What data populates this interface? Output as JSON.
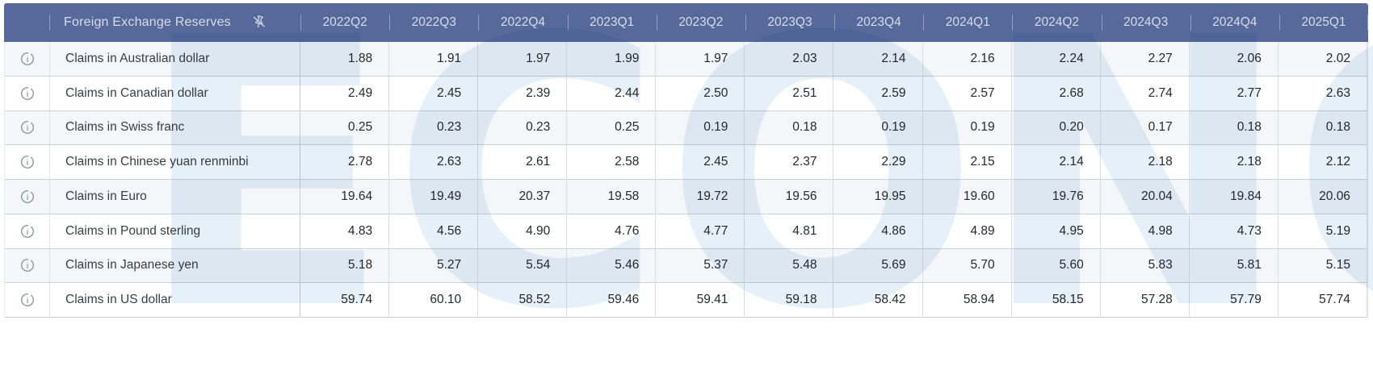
{
  "header": {
    "title": "Foreign Exchange Reserves",
    "columns": [
      "2022Q2",
      "2022Q3",
      "2022Q4",
      "2023Q1",
      "2023Q2",
      "2023Q3",
      "2023Q4",
      "2024Q1",
      "2024Q2",
      "2024Q3",
      "2024Q4",
      "2025Q1"
    ]
  },
  "rows": [
    {
      "label": "Claims in Australian dollar",
      "values": [
        "1.88",
        "1.91",
        "1.97",
        "1.99",
        "1.97",
        "2.03",
        "2.14",
        "2.16",
        "2.24",
        "2.27",
        "2.06",
        "2.02"
      ]
    },
    {
      "label": "Claims in Canadian dollar",
      "values": [
        "2.49",
        "2.45",
        "2.39",
        "2.44",
        "2.50",
        "2.51",
        "2.59",
        "2.57",
        "2.68",
        "2.74",
        "2.77",
        "2.63"
      ]
    },
    {
      "label": "Claims in Swiss franc",
      "values": [
        "0.25",
        "0.23",
        "0.23",
        "0.25",
        "0.19",
        "0.18",
        "0.19",
        "0.19",
        "0.20",
        "0.17",
        "0.18",
        "0.18"
      ]
    },
    {
      "label": "Claims in Chinese yuan renminbi",
      "values": [
        "2.78",
        "2.63",
        "2.61",
        "2.58",
        "2.45",
        "2.37",
        "2.29",
        "2.15",
        "2.14",
        "2.18",
        "2.18",
        "2.12"
      ]
    },
    {
      "label": "Claims in Euro",
      "values": [
        "19.64",
        "19.49",
        "20.37",
        "19.58",
        "19.72",
        "19.56",
        "19.95",
        "19.60",
        "19.76",
        "20.04",
        "19.84",
        "20.06"
      ]
    },
    {
      "label": "Claims in Pound sterling",
      "values": [
        "4.83",
        "4.56",
        "4.90",
        "4.76",
        "4.77",
        "4.81",
        "4.86",
        "4.89",
        "4.95",
        "4.98",
        "4.73",
        "5.19"
      ]
    },
    {
      "label": "Claims in Japanese yen",
      "values": [
        "5.18",
        "5.27",
        "5.54",
        "5.46",
        "5.37",
        "5.48",
        "5.69",
        "5.70",
        "5.60",
        "5.83",
        "5.81",
        "5.15"
      ]
    },
    {
      "label": "Claims in US dollar",
      "values": [
        "59.74",
        "60.10",
        "58.52",
        "59.46",
        "59.41",
        "59.18",
        "58.42",
        "58.94",
        "58.15",
        "57.28",
        "57.79",
        "57.74"
      ]
    }
  ],
  "icons": {
    "info_glyph": "i",
    "pin": "unpin-icon"
  },
  "watermark_text": "ECONOMICS",
  "colors": {
    "header_bg": "#56699a",
    "header_text": "#d6ddea",
    "row_alt_bg": "#f4f6f9",
    "row_bg": "#ffffff",
    "grid_line": "#dbdee3",
    "value_text": "#26292d",
    "label_text": "#3a3e44",
    "icon_gray": "#8f96a1",
    "watermark": "#d2e4f2"
  },
  "chart_data": {
    "type": "table",
    "title": "Foreign Exchange Reserves",
    "categories": [
      "2022Q2",
      "2022Q3",
      "2022Q4",
      "2023Q1",
      "2023Q2",
      "2023Q3",
      "2023Q4",
      "2024Q1",
      "2024Q2",
      "2024Q3",
      "2024Q4",
      "2025Q1"
    ],
    "series": [
      {
        "name": "Claims in Australian dollar",
        "values": [
          1.88,
          1.91,
          1.97,
          1.99,
          1.97,
          2.03,
          2.14,
          2.16,
          2.24,
          2.27,
          2.06,
          2.02
        ]
      },
      {
        "name": "Claims in Canadian dollar",
        "values": [
          2.49,
          2.45,
          2.39,
          2.44,
          2.5,
          2.51,
          2.59,
          2.57,
          2.68,
          2.74,
          2.77,
          2.63
        ]
      },
      {
        "name": "Claims in Swiss franc",
        "values": [
          0.25,
          0.23,
          0.23,
          0.25,
          0.19,
          0.18,
          0.19,
          0.19,
          0.2,
          0.17,
          0.18,
          0.18
        ]
      },
      {
        "name": "Claims in Chinese yuan renminbi",
        "values": [
          2.78,
          2.63,
          2.61,
          2.58,
          2.45,
          2.37,
          2.29,
          2.15,
          2.14,
          2.18,
          2.18,
          2.12
        ]
      },
      {
        "name": "Claims in Euro",
        "values": [
          19.64,
          19.49,
          20.37,
          19.58,
          19.72,
          19.56,
          19.95,
          19.6,
          19.76,
          20.04,
          19.84,
          20.06
        ]
      },
      {
        "name": "Claims in Pound sterling",
        "values": [
          4.83,
          4.56,
          4.9,
          4.76,
          4.77,
          4.81,
          4.86,
          4.89,
          4.95,
          4.98,
          4.73,
          5.19
        ]
      },
      {
        "name": "Claims in Japanese yen",
        "values": [
          5.18,
          5.27,
          5.54,
          5.46,
          5.37,
          5.48,
          5.69,
          5.7,
          5.6,
          5.83,
          5.81,
          5.15
        ]
      },
      {
        "name": "Claims in US dollar",
        "values": [
          59.74,
          60.1,
          58.52,
          59.46,
          59.41,
          59.18,
          58.42,
          58.94,
          58.15,
          57.28,
          57.79,
          57.74
        ]
      }
    ]
  }
}
